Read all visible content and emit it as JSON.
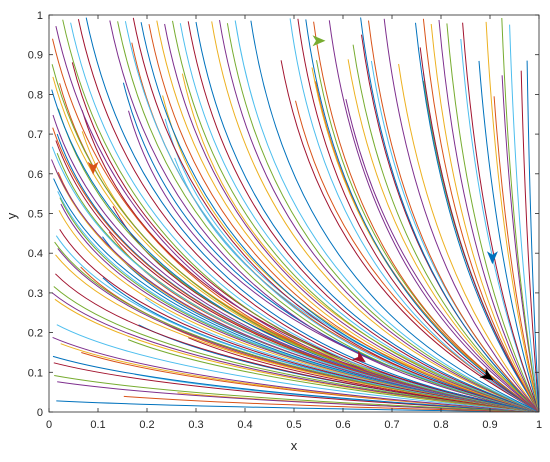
{
  "chart_data": {
    "type": "line",
    "title": "",
    "xlabel": "x",
    "ylabel": "y",
    "xlim": [
      0,
      1
    ],
    "ylim": [
      0,
      1
    ],
    "xticks": [
      "0",
      "0.1",
      "0.2",
      "0.3",
      "0.4",
      "0.5",
      "0.6",
      "0.7",
      "0.8",
      "0.9",
      "1"
    ],
    "yticks": [
      "0",
      "0.1",
      "0.2",
      "0.3",
      "0.4",
      "0.5",
      "0.6",
      "0.7",
      "0.8",
      "0.9",
      "1"
    ],
    "grid": false,
    "legend": "none",
    "convergence_point": [
      1,
      0
    ],
    "streamline_count": 120,
    "palette": [
      "#0072BD",
      "#D95319",
      "#EDB120",
      "#7E2F8E",
      "#77AC30",
      "#4DBEEE",
      "#A2142F"
    ],
    "arrows": [
      {
        "x": 0.55,
        "y": 0.935,
        "direction": "right",
        "color": "#77AC30"
      },
      {
        "x": 0.09,
        "y": 0.615,
        "direction": "down",
        "color": "#D95319"
      },
      {
        "x": 0.905,
        "y": 0.39,
        "direction": "down",
        "color": "#0072BD"
      },
      {
        "x": 0.635,
        "y": 0.135,
        "direction": "down-right",
        "color": "#A2142F"
      },
      {
        "x": 0.895,
        "y": 0.09,
        "direction": "down-right",
        "color": "#000000"
      }
    ]
  }
}
